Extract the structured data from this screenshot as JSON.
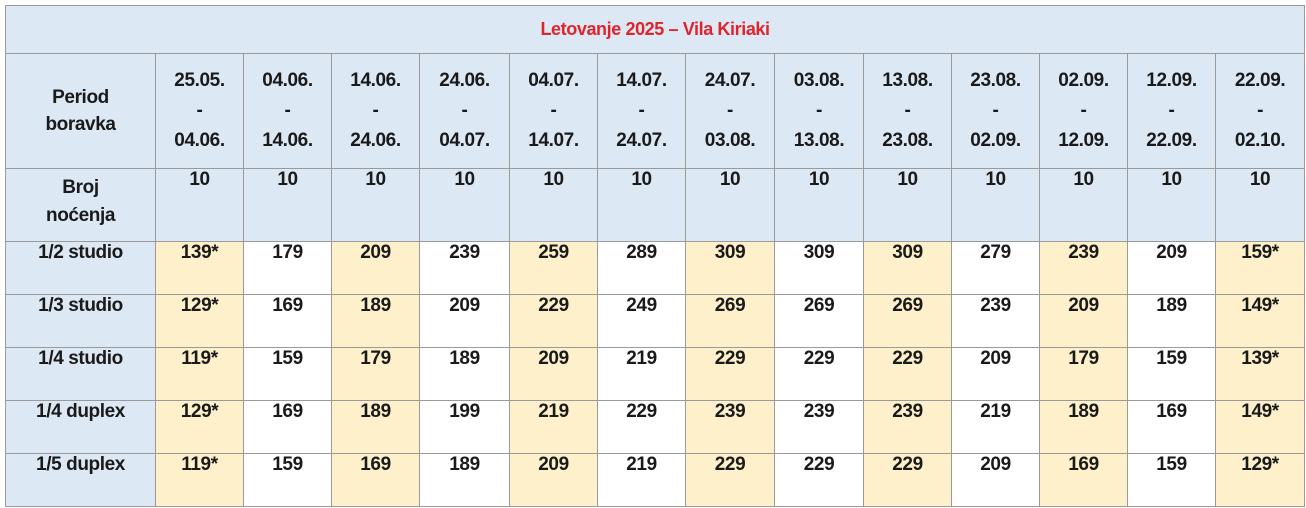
{
  "title": "Letovanje 2025 – Vila Kiriaki",
  "header": {
    "period_label_1": "Period",
    "period_label_2": "boravka",
    "nights_label_1": "Broj",
    "nights_label_2": "noćenja"
  },
  "periods": [
    {
      "from": "25.05.",
      "sep": "-",
      "to": "04.06.",
      "nights": "10"
    },
    {
      "from": "04.06.",
      "sep": "-",
      "to": "14.06.",
      "nights": "10"
    },
    {
      "from": "14.06.",
      "sep": "-",
      "to": "24.06.",
      "nights": "10"
    },
    {
      "from": "24.06.",
      "sep": "-",
      "to": "04.07.",
      "nights": "10"
    },
    {
      "from": "04.07.",
      "sep": "-",
      "to": "14.07.",
      "nights": "10"
    },
    {
      "from": "14.07.",
      "sep": "-",
      "to": "24.07.",
      "nights": "10"
    },
    {
      "from": "24.07.",
      "sep": "-",
      "to": "03.08.",
      "nights": "10"
    },
    {
      "from": "03.08.",
      "sep": "-",
      "to": "13.08.",
      "nights": "10"
    },
    {
      "from": "13.08.",
      "sep": "-",
      "to": "23.08.",
      "nights": "10"
    },
    {
      "from": "23.08.",
      "sep": "-",
      "to": "02.09.",
      "nights": "10"
    },
    {
      "from": "02.09.",
      "sep": "-",
      "to": "12.09.",
      "nights": "10"
    },
    {
      "from": "12.09.",
      "sep": "-",
      "to": "22.09.",
      "nights": "10"
    },
    {
      "from": "22.09.",
      "sep": "-",
      "to": "02.10.",
      "nights": "10"
    }
  ],
  "rooms": [
    {
      "name": "1/2 studio",
      "prices": [
        "139*",
        "179",
        "209",
        "239",
        "259",
        "289",
        "309",
        "309",
        "309",
        "279",
        "239",
        "209",
        "159*"
      ]
    },
    {
      "name": "1/3 studio",
      "prices": [
        "129*",
        "169",
        "189",
        "209",
        "229",
        "249",
        "269",
        "269",
        "269",
        "239",
        "209",
        "189",
        "149*"
      ]
    },
    {
      "name": "1/4 studio",
      "prices": [
        "119*",
        "159",
        "179",
        "189",
        "209",
        "219",
        "229",
        "229",
        "229",
        "209",
        "179",
        "159",
        "139*"
      ]
    },
    {
      "name": "1/4 duplex",
      "prices": [
        "129*",
        "169",
        "189",
        "199",
        "219",
        "229",
        "239",
        "239",
        "239",
        "219",
        "189",
        "169",
        "149*"
      ]
    },
    {
      "name": "1/5 duplex",
      "prices": [
        "119*",
        "159",
        "169",
        "189",
        "209",
        "219",
        "229",
        "229",
        "229",
        "209",
        "169",
        "159",
        "129*"
      ]
    }
  ],
  "highlighted_columns": [
    0,
    2,
    4,
    6,
    8,
    10,
    12
  ],
  "colors": {
    "title_red": "#e0242b",
    "header_blue": "#dde8f5",
    "highlight_yellow": "#fdf0cb",
    "plain_white": "#ffffff",
    "border_gray": "#9a9a9a"
  }
}
